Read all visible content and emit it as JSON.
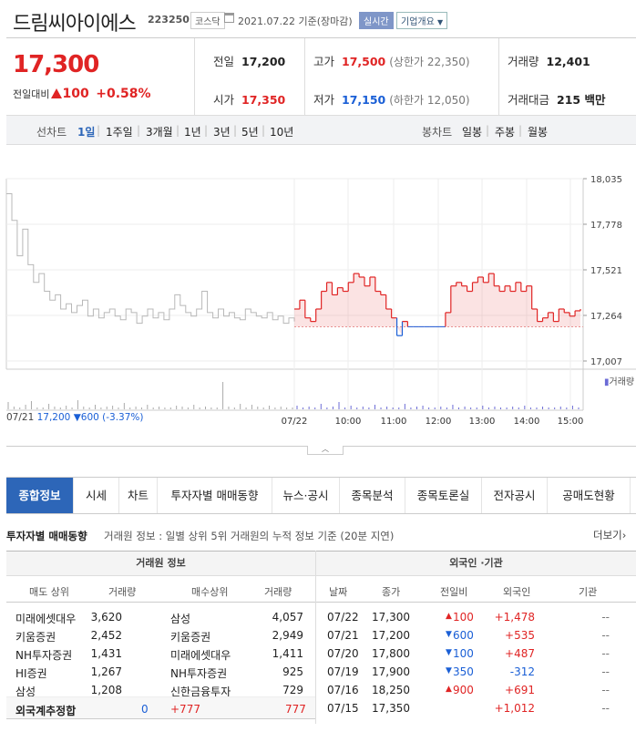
{
  "header": {
    "name": "드림씨아이에스",
    "code": "223250",
    "market": "코스닥",
    "date": "2021.07.22 기준(장마감)",
    "live_btn": "실시간",
    "corp_btn": "기업개요"
  },
  "summary": {
    "price": "17,300",
    "change_label": "전일대비",
    "change": "100",
    "change_pct": "+0.58%",
    "prev_label": "전일",
    "prev": "17,200",
    "high_label": "고가",
    "high": "17,500",
    "upper": "(상한가 22,350)",
    "vol_label": "거래량",
    "vol": "12,401",
    "open_label": "시가",
    "open": "17,350",
    "low_label": "저가",
    "low": "17,150",
    "lower": "(하한가 12,050)",
    "amt_label": "거래대금",
    "amt": "215 백만"
  },
  "periods": {
    "label": "선차트",
    "items": [
      "1일",
      "1주일",
      "3개월",
      "1년",
      "3년",
      "5년",
      "10년"
    ],
    "label2": "봉차트",
    "items2": [
      "일봉",
      "주봉",
      "월봉"
    ]
  },
  "chart_data": {
    "type": "line",
    "y_ticks": [
      "18,035",
      "17,778",
      "17,521",
      "17,264",
      "17,007"
    ],
    "ylim": [
      17007,
      18035
    ],
    "base": 17200,
    "x_ticks": [
      "07/22",
      "10:00",
      "11:00",
      "12:00",
      "13:00",
      "14:00",
      "15:00"
    ],
    "prev_day_label": "07/21",
    "prev_close": "17,200",
    "prev_change": "▼600 (-3.37%)",
    "volume_label": "거래량",
    "prev_series": [
      17950,
      17800,
      17600,
      17750,
      17550,
      17450,
      17500,
      17400,
      17350,
      17380,
      17300,
      17330,
      17280,
      17320,
      17350,
      17260,
      17300,
      17250,
      17280,
      17300,
      17260,
      17240,
      17300,
      17280,
      17220,
      17260,
      17300,
      17250,
      17280,
      17240,
      17300,
      17380,
      17320,
      17280,
      17260,
      17300,
      17400,
      17280,
      17250,
      17300,
      17260,
      17280,
      17250,
      17240,
      17300,
      17280,
      17260,
      17250,
      17280,
      17240,
      17260,
      17220,
      17250,
      17230
    ],
    "today_series": [
      17300,
      17350,
      17250,
      17230,
      17300,
      17400,
      17450,
      17380,
      17420,
      17400,
      17450,
      17500,
      17480,
      17430,
      17480,
      17400,
      17380,
      17300,
      17250,
      17150,
      17230,
      17200,
      17200,
      17200,
      17200,
      17200,
      17200,
      17200,
      17280,
      17430,
      17450,
      17430,
      17400,
      17450,
      17480,
      17450,
      17500,
      17430,
      17400,
      17430,
      17400,
      17450,
      17400,
      17430,
      17300,
      17230,
      17250,
      17280,
      17230,
      17300,
      17280,
      17260,
      17290,
      17300
    ]
  },
  "tabs": [
    "종합정보",
    "시세",
    "차트",
    "투자자별 매매동향",
    "뉴스·공시",
    "종목분석",
    "종목토론실",
    "전자공시",
    "공매도현황"
  ],
  "section": {
    "title": "투자자별 매매동향",
    "desc": "거래원 정보 : 일별 상위 5위 거래원의 누적 정보 기준 (20분 지연)",
    "more": "더보기"
  },
  "broker": {
    "group_title": "거래원 정보",
    "headers": [
      "매도 상위",
      "거래량",
      "매수상위",
      "거래량"
    ],
    "rows": [
      [
        "미래에셋대우",
        "3,620",
        "삼성",
        "4,057"
      ],
      [
        "키움증권",
        "2,452",
        "키움증권",
        "2,949"
      ],
      [
        "NH투자증권",
        "1,431",
        "미래에셋대우",
        "1,411"
      ],
      [
        "HI증권",
        "1,267",
        "NH투자증권",
        "925"
      ],
      [
        "삼성",
        "1,208",
        "신한금융투자",
        "729"
      ]
    ],
    "foreign": {
      "label": "외국계추정합",
      "sell": "0",
      "diff": "+777",
      "buy": "777"
    }
  },
  "foreign": {
    "group_title": "외국인 ·기관",
    "headers": [
      "날짜",
      "종가",
      "전일비",
      "외국인",
      "기관"
    ],
    "rows": [
      {
        "date": "07/22",
        "close": "17,300",
        "dir": "up",
        "chg": "100",
        "frgn": "+1,478",
        "inst": "--"
      },
      {
        "date": "07/21",
        "close": "17,200",
        "dir": "down",
        "chg": "600",
        "frgn": "+535",
        "inst": "--"
      },
      {
        "date": "07/20",
        "close": "17,800",
        "dir": "down",
        "chg": "100",
        "frgn": "+487",
        "inst": "--"
      },
      {
        "date": "07/19",
        "close": "17,900",
        "dir": "down",
        "chg": "350",
        "frgn": "-312",
        "inst": "--"
      },
      {
        "date": "07/16",
        "close": "18,250",
        "dir": "up",
        "chg": "900",
        "frgn": "+691",
        "inst": "--"
      },
      {
        "date": "07/15",
        "close": "17,350",
        "dir": "",
        "chg": "",
        "frgn": "+1,012",
        "inst": "--"
      }
    ]
  }
}
